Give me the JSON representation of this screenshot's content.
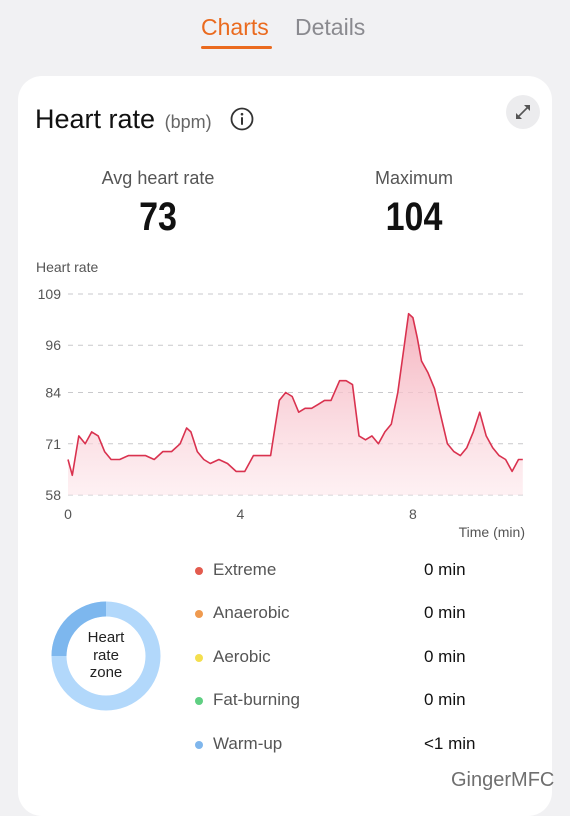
{
  "tabs": [
    {
      "label": "Charts",
      "active": true
    },
    {
      "label": "Details",
      "active": false
    }
  ],
  "card": {
    "title": "Heart rate",
    "unit": "(bpm)",
    "info_icon": "info-icon",
    "expand_icon": "expand-icon"
  },
  "stats": {
    "avg_label": "Avg heart rate",
    "avg_value": "73",
    "max_label": "Maximum",
    "max_value": "104"
  },
  "chart_data": {
    "type": "area",
    "ylabel": "Heart rate",
    "xlabel": "Time (min)",
    "y_ticks": [
      109,
      96,
      84,
      71,
      58
    ],
    "x_ticks": [
      0,
      4,
      8
    ],
    "ylim": [
      58,
      109
    ],
    "xlim": [
      0,
      10.6
    ],
    "grid": true,
    "color": "#d9324f",
    "fill_color": "#f7c6cf",
    "series": [
      {
        "x": [
          0,
          0.1,
          0.25,
          0.4,
          0.55,
          0.7,
          0.85,
          1.0,
          1.2,
          1.4,
          1.6,
          1.8,
          2.0,
          2.2,
          2.4,
          2.6,
          2.75,
          2.85,
          3.0,
          3.15,
          3.3,
          3.5,
          3.7,
          3.9,
          4.1,
          4.3,
          4.5,
          4.7,
          4.8,
          4.9,
          5.05,
          5.2,
          5.35,
          5.5,
          5.65,
          5.8,
          5.95,
          6.1,
          6.3,
          6.45,
          6.6,
          6.75,
          6.9,
          7.05,
          7.2,
          7.35,
          7.5,
          7.65,
          7.8,
          7.9,
          8.0,
          8.1,
          8.2,
          8.35,
          8.5,
          8.65,
          8.8,
          8.95,
          9.1,
          9.25,
          9.4,
          9.55,
          9.7,
          9.85,
          10.0,
          10.15,
          10.3,
          10.45,
          10.55
        ],
        "y": [
          67,
          63,
          73,
          71,
          74,
          73,
          69,
          67,
          67,
          68,
          68,
          68,
          67,
          69,
          69,
          71,
          75,
          74,
          69,
          67,
          66,
          67,
          66,
          64,
          64,
          68,
          68,
          68,
          75,
          82,
          84,
          83,
          79,
          80,
          80,
          81,
          82,
          82,
          87,
          87,
          86,
          73,
          72,
          73,
          71,
          74,
          76,
          84,
          96,
          104,
          103,
          98,
          92,
          89,
          85,
          78,
          71,
          69,
          68,
          70,
          74,
          79,
          73,
          70,
          68,
          67,
          64,
          67,
          67
        ]
      }
    ]
  },
  "zone": {
    "center_text": [
      "Heart",
      "rate",
      "zone"
    ],
    "items": [
      {
        "name": "Extreme",
        "time": "0 min",
        "color": "#e35b4e"
      },
      {
        "name": "Anaerobic",
        "time": "0 min",
        "color": "#ef9a4f"
      },
      {
        "name": "Aerobic",
        "time": "0 min",
        "color": "#f4df4e"
      },
      {
        "name": "Fat-burning",
        "time": "0 min",
        "color": "#5fcf82"
      },
      {
        "name": "Warm-up",
        "time": "<1 min",
        "color": "#7fb6ec"
      }
    ]
  },
  "watermark": "GingerMFC"
}
